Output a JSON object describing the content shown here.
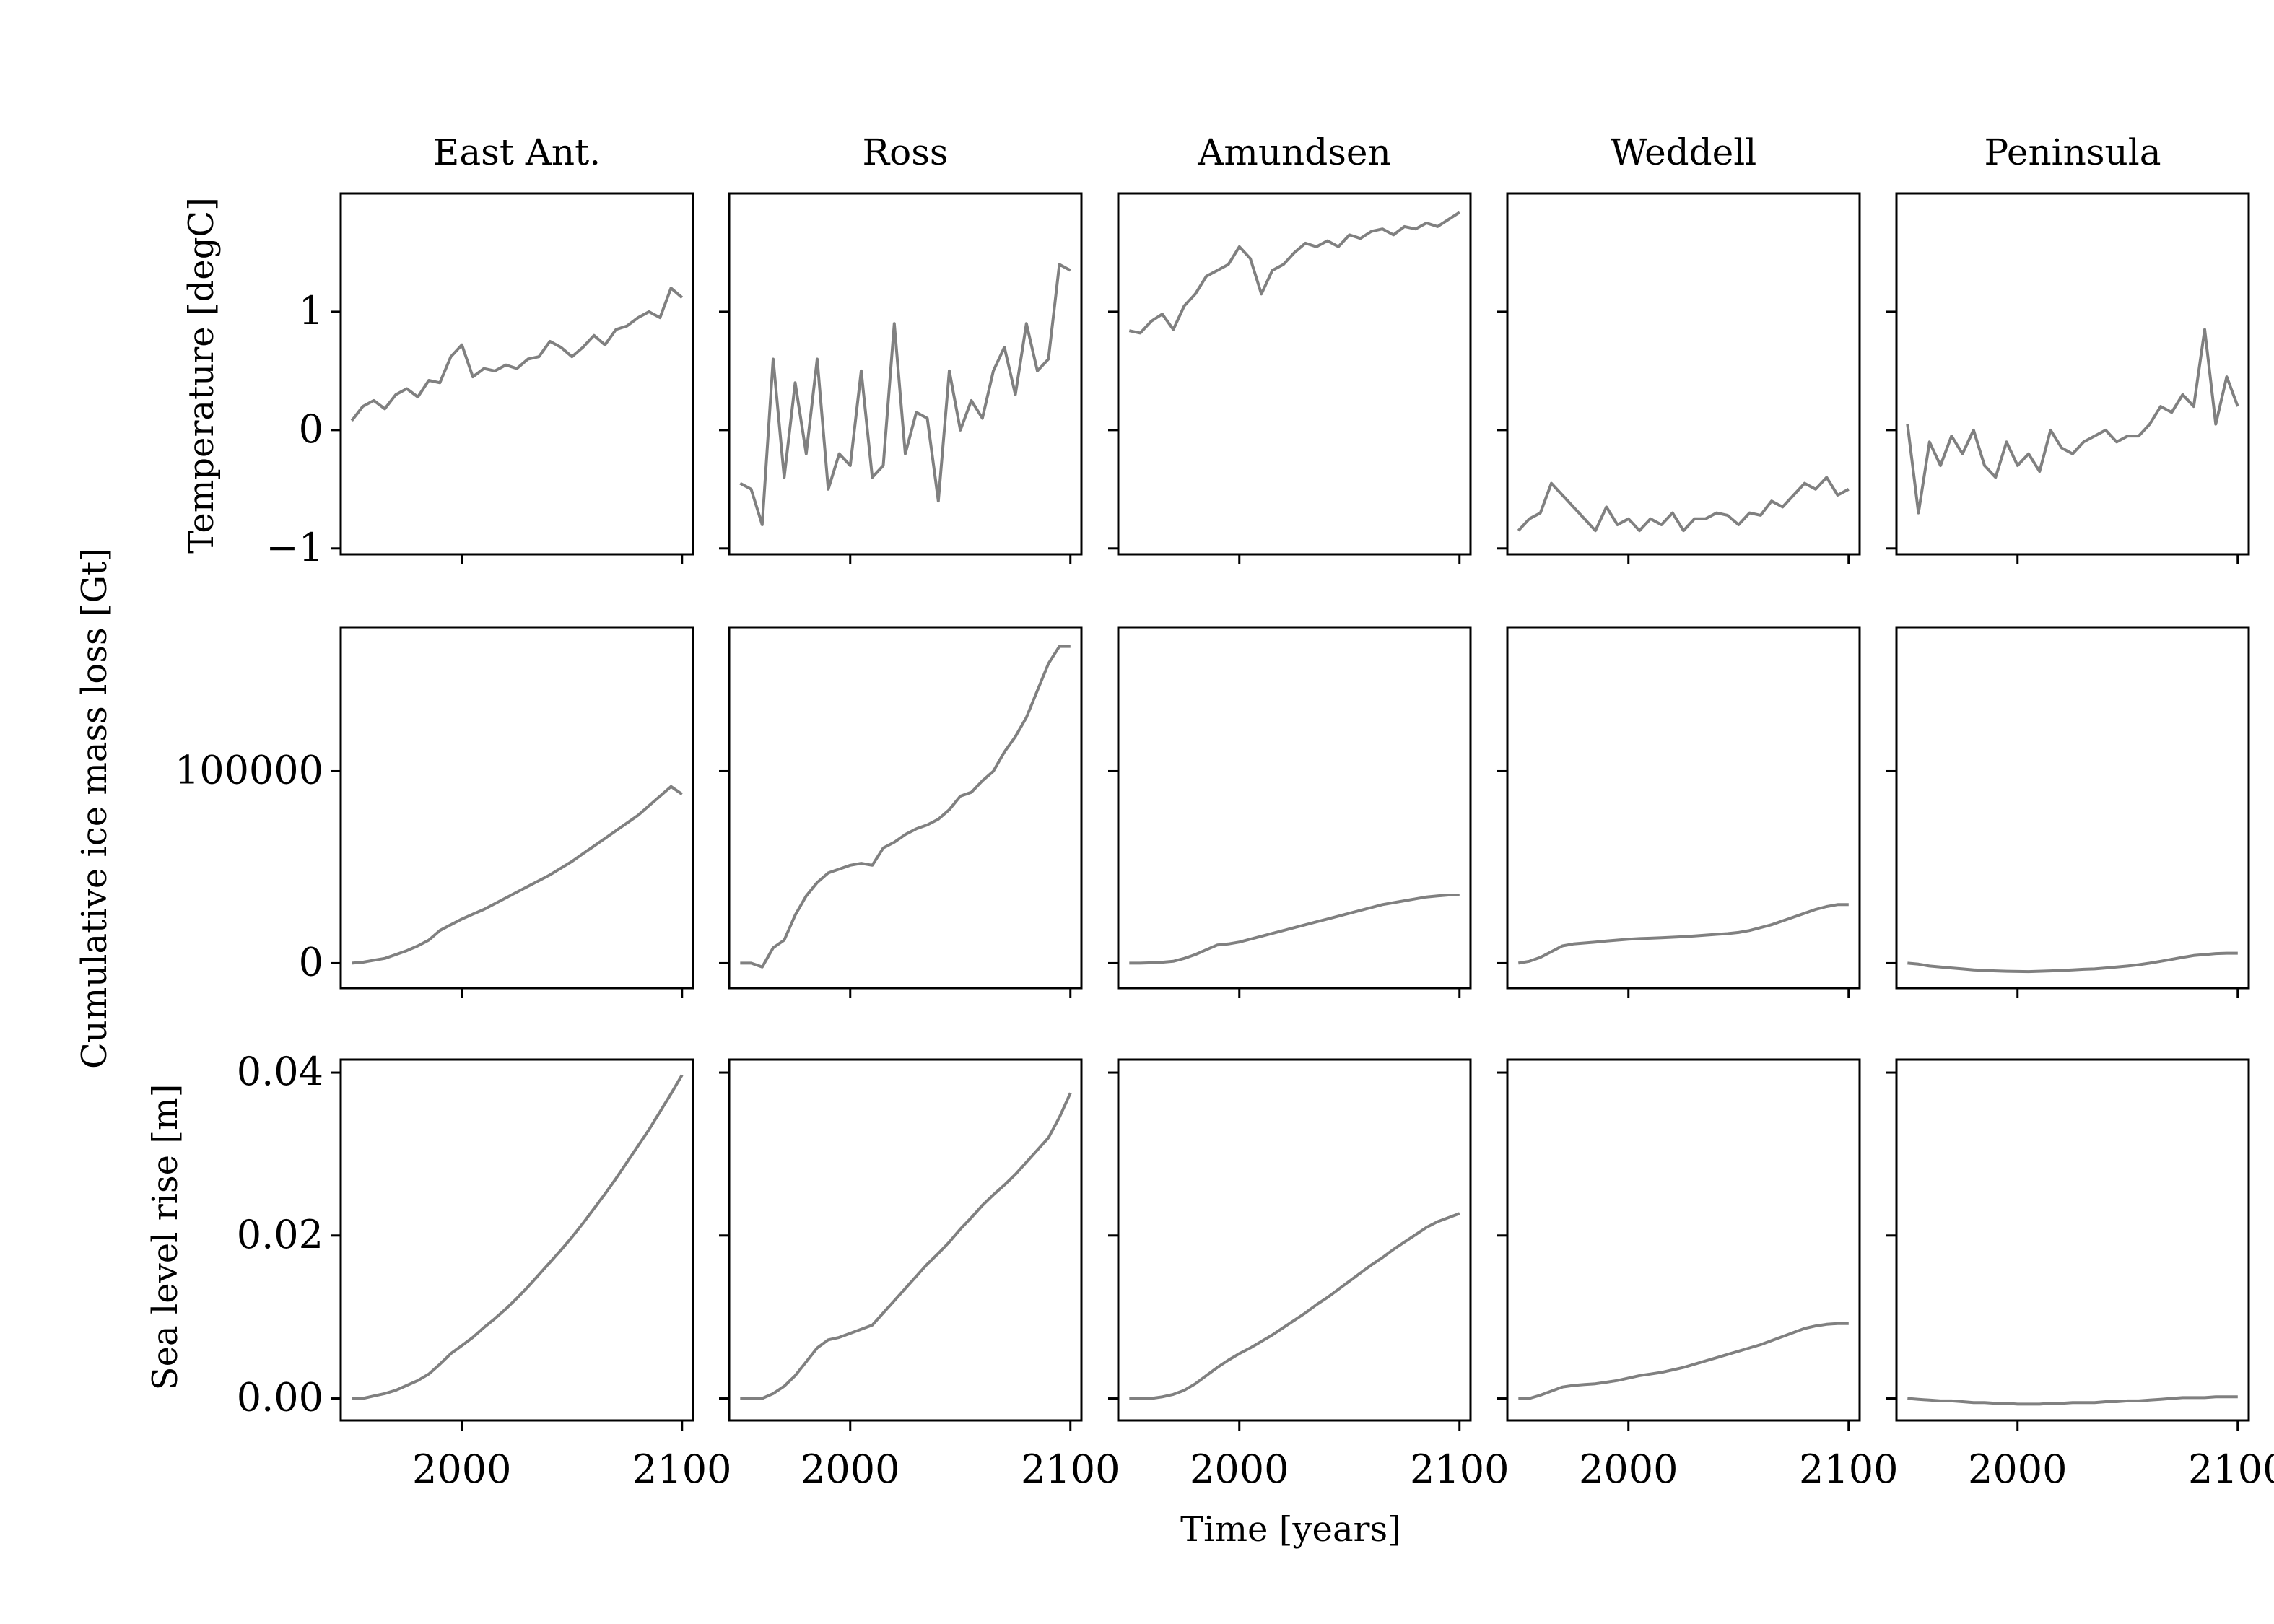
{
  "figure": {
    "xlabel": "Time [years]",
    "row_labels": [
      "Temperature [degC]",
      "Cumulative ice mass loss [Gt]",
      "Sea level rise [m]"
    ],
    "region_titles": [
      "East Ant.",
      "Ross",
      "Amundsen",
      "Weddell",
      "Peninsula"
    ],
    "line_color": "#808080"
  },
  "chart_data": {
    "type": "line",
    "layout": "3 rows x 5 columns of small multiples, shared x axis per column, shared y axis per row",
    "x": [
      1950,
      1955,
      1960,
      1965,
      1970,
      1975,
      1980,
      1985,
      1990,
      1995,
      2000,
      2005,
      2010,
      2015,
      2020,
      2025,
      2030,
      2035,
      2040,
      2045,
      2050,
      2055,
      2060,
      2065,
      2070,
      2075,
      2080,
      2085,
      2090,
      2095,
      2100
    ],
    "xlim": [
      1945,
      2105
    ],
    "xticks": [
      2000,
      2100
    ],
    "xtick_labels": [
      "2000",
      "2100"
    ],
    "rows": [
      {
        "ylabel": "Temperature [degC]",
        "ylim": [
          -1.05,
          2.0
        ],
        "yticks": [
          -1,
          0,
          1
        ],
        "ytick_labels": [
          "−1",
          "0",
          "1"
        ],
        "series": [
          {
            "region": "East Ant.",
            "values": [
              0.08,
              0.2,
              0.25,
              0.18,
              0.3,
              0.35,
              0.28,
              0.42,
              0.4,
              0.62,
              0.72,
              0.45,
              0.52,
              0.5,
              0.55,
              0.52,
              0.6,
              0.62,
              0.75,
              0.7,
              0.62,
              0.7,
              0.8,
              0.72,
              0.85,
              0.88,
              0.95,
              1.0,
              0.95,
              1.2,
              1.12
            ]
          },
          {
            "region": "Ross",
            "values": [
              -0.45,
              -0.5,
              -0.8,
              0.6,
              -0.4,
              0.4,
              -0.2,
              0.6,
              -0.5,
              -0.2,
              -0.3,
              0.5,
              -0.4,
              -0.3,
              0.9,
              -0.2,
              0.15,
              0.1,
              -0.6,
              0.5,
              0.0,
              0.25,
              0.1,
              0.5,
              0.7,
              0.3,
              0.9,
              0.5,
              0.6,
              1.4,
              1.35
            ]
          },
          {
            "region": "Amundsen",
            "values": [
              0.84,
              0.82,
              0.92,
              0.98,
              0.85,
              1.05,
              1.15,
              1.3,
              1.35,
              1.4,
              1.55,
              1.45,
              1.15,
              1.35,
              1.4,
              1.5,
              1.58,
              1.55,
              1.6,
              1.55,
              1.65,
              1.62,
              1.68,
              1.7,
              1.65,
              1.72,
              1.7,
              1.75,
              1.72,
              1.78,
              1.84
            ]
          },
          {
            "region": "Weddell",
            "values": [
              -0.85,
              -0.75,
              -0.7,
              -0.45,
              -0.55,
              -0.65,
              -0.75,
              -0.85,
              -0.65,
              -0.8,
              -0.75,
              -0.85,
              -0.75,
              -0.8,
              -0.7,
              -0.85,
              -0.75,
              -0.75,
              -0.7,
              -0.72,
              -0.8,
              -0.7,
              -0.72,
              -0.6,
              -0.65,
              -0.55,
              -0.45,
              -0.5,
              -0.4,
              -0.55,
              -0.5
            ]
          },
          {
            "region": "Peninsula",
            "values": [
              0.05,
              -0.7,
              -0.1,
              -0.3,
              -0.05,
              -0.2,
              0.0,
              -0.3,
              -0.4,
              -0.1,
              -0.3,
              -0.2,
              -0.35,
              0.0,
              -0.15,
              -0.2,
              -0.1,
              -0.05,
              0.0,
              -0.1,
              -0.05,
              -0.05,
              0.05,
              0.2,
              0.15,
              0.3,
              0.2,
              0.85,
              0.05,
              0.45,
              0.2
            ]
          }
        ]
      },
      {
        "ylabel": "Cumulative ice mass loss [Gt]",
        "ylim": [
          -13000,
          175000
        ],
        "yticks": [
          0,
          100000
        ],
        "ytick_labels": [
          "0",
          "100000"
        ],
        "series": [
          {
            "region": "East Ant.",
            "values": [
              0,
              500,
              1500,
              2500,
              4500,
              6500,
              9000,
              12000,
              17000,
              20000,
              23000,
              25500,
              28000,
              31000,
              34000,
              37000,
              40000,
              43000,
              46000,
              49500,
              53000,
              57000,
              61000,
              65000,
              69000,
              73000,
              77000,
              82000,
              87000,
              92000,
              88000
            ]
          },
          {
            "region": "Ross",
            "values": [
              0,
              0,
              -2000,
              8000,
              12000,
              25000,
              35000,
              42000,
              47000,
              49000,
              51000,
              52000,
              51000,
              60000,
              63000,
              67000,
              70000,
              72000,
              75000,
              80000,
              87000,
              89000,
              95000,
              100000,
              110000,
              118000,
              128000,
              142000,
              156000,
              165000,
              165000
            ]
          },
          {
            "region": "Amundsen",
            "values": [
              0,
              0,
              200,
              500,
              1000,
              2500,
              4500,
              7000,
              9500,
              10000,
              11000,
              12500,
              14000,
              15500,
              17000,
              18500,
              20000,
              21500,
              23000,
              24500,
              26000,
              27500,
              29000,
              30500,
              31500,
              32500,
              33500,
              34500,
              35000,
              35500,
              35500
            ]
          },
          {
            "region": "Weddell",
            "values": [
              0,
              1000,
              3000,
              6000,
              9000,
              10000,
              10500,
              11000,
              11500,
              12000,
              12500,
              12800,
              13000,
              13200,
              13500,
              13800,
              14200,
              14600,
              15000,
              15400,
              16000,
              17000,
              18500,
              20000,
              22000,
              24000,
              26000,
              28000,
              29500,
              30500,
              30500
            ]
          },
          {
            "region": "Peninsula",
            "values": [
              0,
              -500,
              -1500,
              -2000,
              -2500,
              -3000,
              -3500,
              -3800,
              -4000,
              -4200,
              -4300,
              -4400,
              -4200,
              -4000,
              -3800,
              -3500,
              -3200,
              -3000,
              -2500,
              -2000,
              -1500,
              -800,
              0,
              1000,
              2000,
              3000,
              4000,
              4500,
              5000,
              5200,
              5200
            ]
          }
        ]
      },
      {
        "ylabel": "Sea level rise [m]",
        "ylim": [
          -0.0027,
          0.0416
        ],
        "yticks": [
          0,
          0.02,
          0.04
        ],
        "ytick_labels": [
          "0.00",
          "0.02",
          "0.04"
        ],
        "series": [
          {
            "region": "East Ant.",
            "values": [
              0,
              0,
              0.0003,
              0.0006,
              0.001,
              0.0016,
              0.0022,
              0.003,
              0.0042,
              0.0055,
              0.0065,
              0.0075,
              0.0087,
              0.0098,
              0.011,
              0.0123,
              0.0137,
              0.0152,
              0.0167,
              0.0182,
              0.0198,
              0.0215,
              0.0233,
              0.0251,
              0.027,
              0.029,
              0.031,
              0.033,
              0.0352,
              0.0374,
              0.0397
            ]
          },
          {
            "region": "Ross",
            "values": [
              0,
              0,
              0,
              0.0006,
              0.0015,
              0.0028,
              0.0045,
              0.0062,
              0.0072,
              0.0075,
              0.008,
              0.0085,
              0.009,
              0.0105,
              0.012,
              0.0135,
              0.015,
              0.0165,
              0.0178,
              0.0192,
              0.0208,
              0.0222,
              0.0237,
              0.025,
              0.0262,
              0.0275,
              0.029,
              0.0305,
              0.032,
              0.0345,
              0.0375
            ]
          },
          {
            "region": "Amundsen",
            "values": [
              0,
              0,
              0,
              0.0002,
              0.0005,
              0.001,
              0.0018,
              0.0028,
              0.0038,
              0.0047,
              0.0055,
              0.0062,
              0.007,
              0.0078,
              0.0087,
              0.0096,
              0.0105,
              0.0115,
              0.0124,
              0.0134,
              0.0144,
              0.0154,
              0.0164,
              0.0173,
              0.0183,
              0.0192,
              0.0201,
              0.021,
              0.0217,
              0.0222,
              0.0227
            ]
          },
          {
            "region": "Weddell",
            "values": [
              0,
              0,
              0.0004,
              0.0009,
              0.0014,
              0.0016,
              0.0017,
              0.0018,
              0.002,
              0.0022,
              0.0025,
              0.0028,
              0.003,
              0.0032,
              0.0035,
              0.0038,
              0.0042,
              0.0046,
              0.005,
              0.0054,
              0.0058,
              0.0062,
              0.0066,
              0.0071,
              0.0076,
              0.0081,
              0.0086,
              0.0089,
              0.0091,
              0.0092,
              0.0092
            ]
          },
          {
            "region": "Peninsula",
            "values": [
              0,
              -0.0001,
              -0.0002,
              -0.0003,
              -0.0003,
              -0.0004,
              -0.0005,
              -0.0005,
              -0.0006,
              -0.0006,
              -0.0007,
              -0.0007,
              -0.0007,
              -0.0006,
              -0.0006,
              -0.0005,
              -0.0005,
              -0.0005,
              -0.0004,
              -0.0004,
              -0.0003,
              -0.0003,
              -0.0002,
              -0.0001,
              0,
              0.0001,
              0.0001,
              0.0001,
              0.0002,
              0.0002,
              0.0002
            ]
          }
        ]
      }
    ]
  }
}
